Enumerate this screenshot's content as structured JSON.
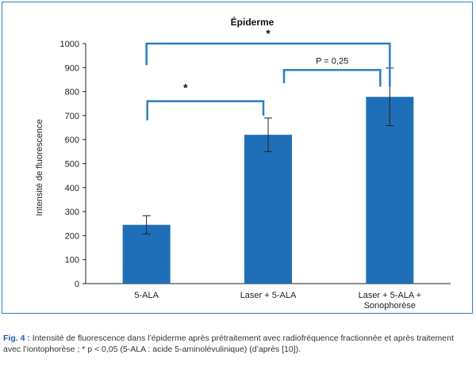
{
  "chart_data": {
    "type": "bar",
    "title": "Épiderme",
    "ylabel": "Intensité de fluorescence",
    "xlabel": "",
    "ylim": [
      0,
      1000
    ],
    "yticks": [
      0,
      100,
      200,
      300,
      400,
      500,
      600,
      700,
      800,
      900,
      1000
    ],
    "categories": [
      [
        "5-ALA"
      ],
      [
        "Laser + 5-ALA"
      ],
      [
        "Laser + 5-ALA +",
        "Sonophorèse"
      ]
    ],
    "values": [
      245,
      620,
      778
    ],
    "error": [
      38,
      70,
      120
    ],
    "bar_color": "#1f6fb8",
    "bracket_color": "#2a7fc1",
    "comparisons": [
      {
        "from": 0,
        "to": 2,
        "label": "*",
        "level": 1000
      },
      {
        "from": 1,
        "to": 2,
        "label": "P = 0,25",
        "level": 890
      },
      {
        "from": 0,
        "to": 1,
        "label": "*",
        "level": 760
      }
    ]
  },
  "caption": {
    "label": "Fig. 4 :",
    "text": " Intensité de fluorescence dans l’épiderme après prétraitement avec radiofréquence fractionnée et après traitement avec l’iontophorèse ; * p < 0,05 (5-ALA : acide 5-aminolévulinique) (d’après [10])."
  }
}
